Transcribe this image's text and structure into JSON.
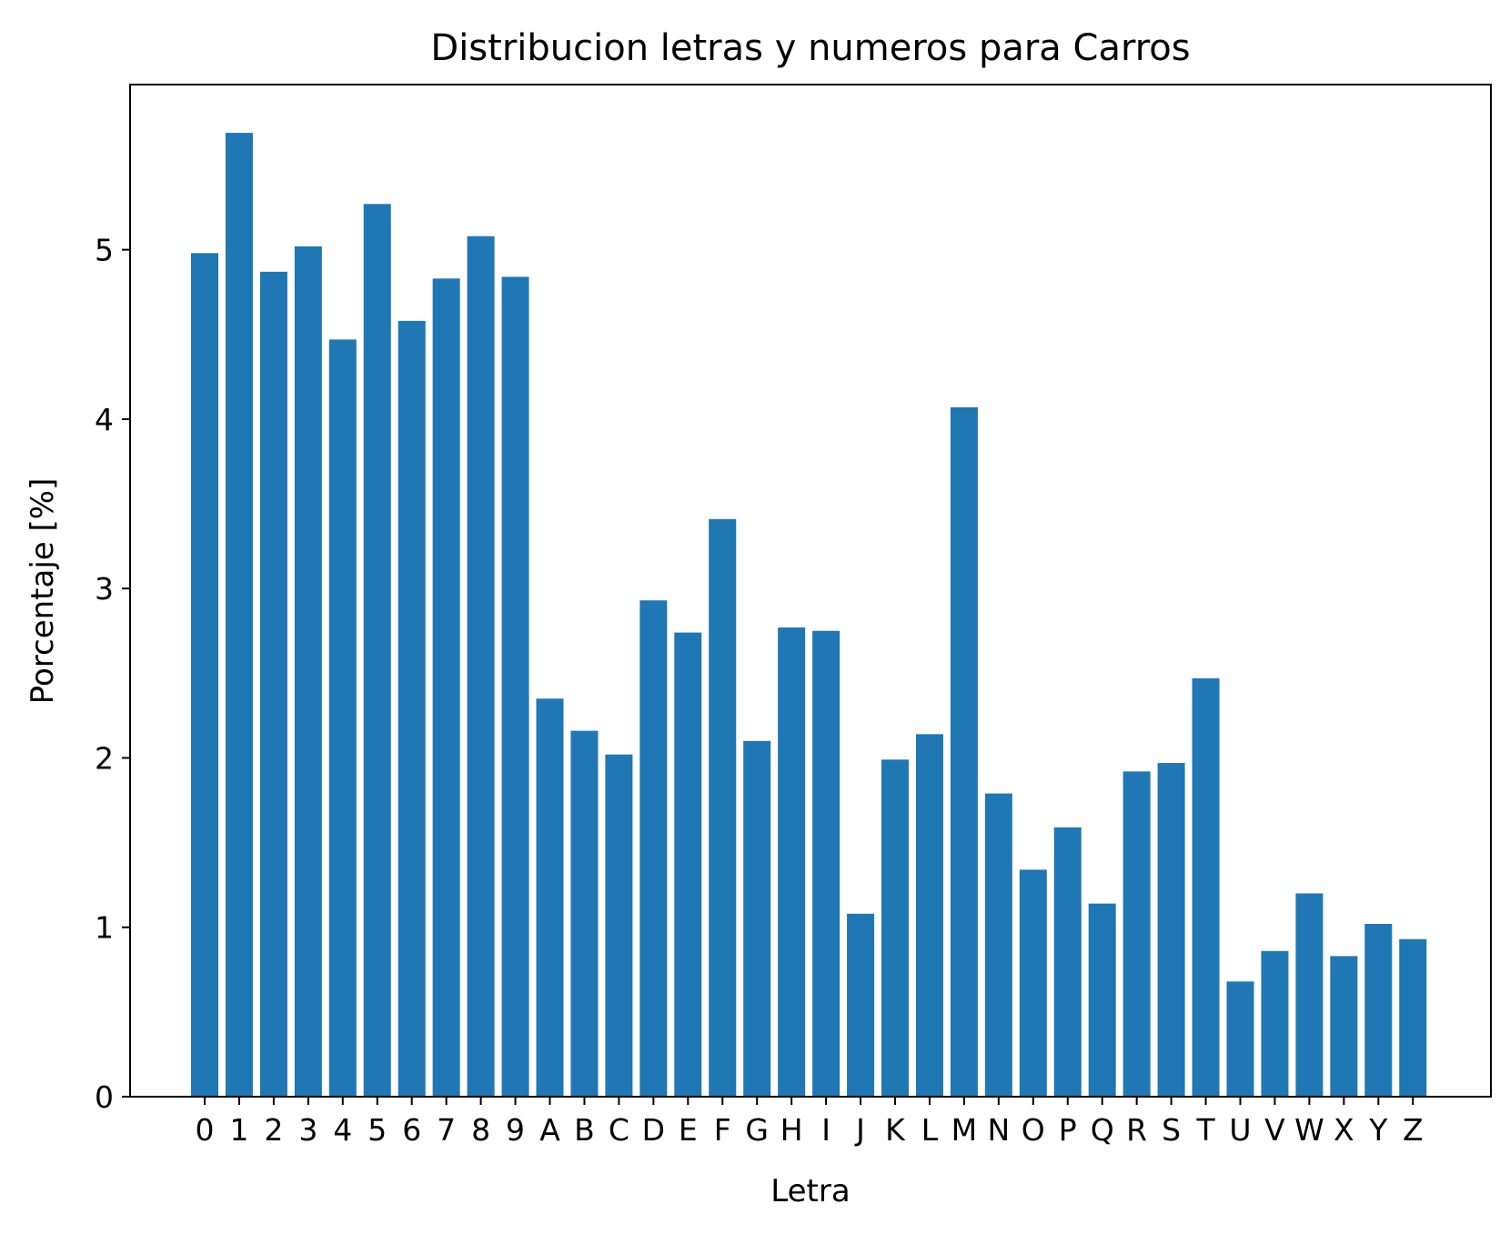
{
  "chart_data": {
    "type": "bar",
    "title": "Distribucion letras y numeros para Carros",
    "xlabel": "Letra",
    "ylabel": "Porcentaje [%]",
    "categories": [
      "0",
      "1",
      "2",
      "3",
      "4",
      "5",
      "6",
      "7",
      "8",
      "9",
      "A",
      "B",
      "C",
      "D",
      "E",
      "F",
      "G",
      "H",
      "I",
      "J",
      "K",
      "L",
      "M",
      "N",
      "O",
      "P",
      "Q",
      "R",
      "S",
      "T",
      "U",
      "V",
      "W",
      "X",
      "Y",
      "Z"
    ],
    "values": [
      4.98,
      5.69,
      4.87,
      5.02,
      4.47,
      5.27,
      4.58,
      4.83,
      5.08,
      4.84,
      2.35,
      2.16,
      2.02,
      2.93,
      2.74,
      3.41,
      2.1,
      2.77,
      2.75,
      1.08,
      1.99,
      2.14,
      4.07,
      1.79,
      1.34,
      1.59,
      1.14,
      1.92,
      1.97,
      2.47,
      0.68,
      0.86,
      1.2,
      0.83,
      1.02,
      0.93
    ],
    "yticks": [
      0,
      1,
      2,
      3,
      4,
      5
    ],
    "ylim": [
      0,
      5.975
    ],
    "bar_color": "#1f77b4",
    "grid": false
  }
}
